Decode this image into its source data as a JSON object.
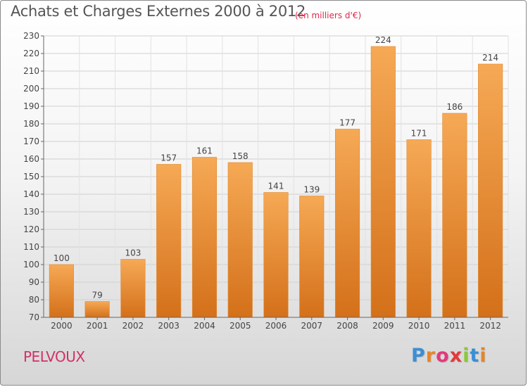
{
  "header": {
    "title": "Achats et Charges Externes 2000 à 2012",
    "unit": "(en milliers d'€)"
  },
  "footer": {
    "commune": "PELVOUX",
    "brand_letters": [
      "P",
      "r",
      "o",
      "x",
      "i",
      "t",
      "i"
    ],
    "brand_colors": [
      "#3a8fd6",
      "#e8842a",
      "#e23a7a",
      "#e23a3a",
      "#8cc63f",
      "#3a8fd6",
      "#e8842a"
    ]
  },
  "chart_data": {
    "type": "bar",
    "title": "Achats et Charges Externes 2000 à 2012",
    "subtitle": "(en milliers d'€)",
    "categories": [
      "2000",
      "2001",
      "2002",
      "2003",
      "2004",
      "2005",
      "2006",
      "2007",
      "2008",
      "2009",
      "2010",
      "2011",
      "2012"
    ],
    "values": [
      100,
      79,
      103,
      157,
      161,
      158,
      141,
      139,
      177,
      224,
      171,
      186,
      214
    ],
    "ylim": [
      70,
      230
    ],
    "yticks": [
      70,
      80,
      90,
      100,
      110,
      120,
      130,
      140,
      150,
      160,
      170,
      180,
      190,
      200,
      210,
      220,
      230
    ],
    "grid": true,
    "bar_color_top": "#f6a955",
    "bar_color_bottom": "#d4701a"
  }
}
